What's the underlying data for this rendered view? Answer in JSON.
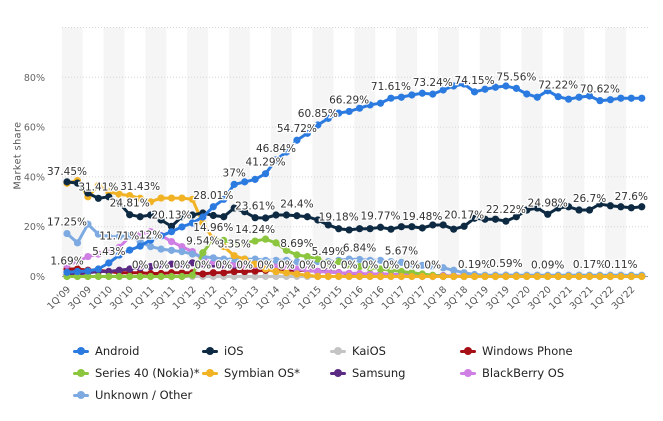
{
  "chart_data": {
    "type": "line",
    "ylabel": "Market share",
    "ylim": [
      0,
      100
    ],
    "yticks": [
      "0%",
      "20%",
      "40%",
      "60%",
      "80%"
    ],
    "ytick_values": [
      0,
      20,
      40,
      60,
      80
    ],
    "grid": true,
    "legend_position": "bottom",
    "x": [
      "1Q'09",
      "2Q'09",
      "3Q'09",
      "4Q'09",
      "1Q'10",
      "2Q'10",
      "3Q'10",
      "4Q'10",
      "1Q'11",
      "2Q'11",
      "3Q'11",
      "4Q'11",
      "1Q'12",
      "2Q'12",
      "3Q'12",
      "4Q'12",
      "1Q'13",
      "2Q'13",
      "3Q'13",
      "4Q'13",
      "1Q'14",
      "2Q'14",
      "3Q'14",
      "4Q'14",
      "1Q'15",
      "2Q'15",
      "3Q'15",
      "4Q'15",
      "1Q'16",
      "2Q'16",
      "3Q'16",
      "4Q'16",
      "1Q'17",
      "2Q'17",
      "3Q'17",
      "4Q'17",
      "1Q'18",
      "2Q'18",
      "3Q'18",
      "4Q'18",
      "1Q'19",
      "2Q'19",
      "3Q'19",
      "4Q'19",
      "1Q'20",
      "2Q'20",
      "3Q'20",
      "4Q'20",
      "1Q'21",
      "2Q'21",
      "3Q'21",
      "4Q'21",
      "1Q'22",
      "2Q'22",
      "3Q'22",
      "4Q'22"
    ],
    "xtick_labels": [
      "1Q'09",
      "3Q'09",
      "1Q'10",
      "3Q'10",
      "1Q'11",
      "3Q'11",
      "1Q'12",
      "3Q'12",
      "1Q'13",
      "3Q'13",
      "1Q'14",
      "3Q'14",
      "1Q'15",
      "3Q'15",
      "1Q'16",
      "3Q'16",
      "1Q'17",
      "3Q'17",
      "1Q'18",
      "3Q'18",
      "1Q'19",
      "3Q'19",
      "1Q'20",
      "3Q'20",
      "1Q'21",
      "3Q'21",
      "1Q'22",
      "3Q'22"
    ],
    "series": [
      {
        "name": "KaiOS",
        "color": "#c4c4c4",
        "values": [
          0,
          0,
          0,
          0,
          0,
          0,
          0,
          0,
          0,
          0,
          0,
          0,
          0,
          0,
          0,
          0,
          0,
          0,
          0,
          0,
          0,
          0,
          0,
          0,
          0,
          0,
          0,
          0,
          0,
          0,
          0,
          0,
          0,
          0,
          0,
          0,
          0,
          0,
          0,
          0.19,
          0.3,
          0.4,
          0.59,
          0.5,
          0.3,
          0.2,
          0.09,
          0.1,
          0.15,
          0.15,
          0.17,
          0.15,
          0.12,
          0.11,
          0.1,
          0.1
        ]
      },
      {
        "name": "Windows Phone",
        "color": "#a50f15",
        "values": [
          3,
          3,
          2.5,
          2.5,
          2,
          1.5,
          1.5,
          1.5,
          1.2,
          1.2,
          1.5,
          1.5,
          1.5,
          1,
          1.5,
          1.5,
          2,
          2,
          2.2,
          2.5,
          2.5,
          2.5,
          2.5,
          2.5,
          2,
          2,
          1.5,
          1.2,
          1,
          0.8,
          0.6,
          0.5,
          0.4,
          0.3,
          0.2,
          0.2,
          0.1,
          0.1,
          0.1,
          0.1,
          0.1,
          0.1,
          0.1,
          0.1,
          0.1,
          0.1,
          0.1,
          0.1,
          0.1,
          0.1,
          0.1,
          0.1,
          0.1,
          0.1,
          0.1,
          0.1
        ]
      },
      {
        "name": "Samsung",
        "color": "#5b2a83",
        "values": [
          0.5,
          1,
          1.5,
          2,
          2,
          2.5,
          3,
          3.5,
          4,
          4.5,
          5,
          5,
          5.5,
          5,
          5,
          4.5,
          4.5,
          4.5,
          4.5,
          4.5,
          4,
          3.5,
          3,
          2.5,
          2,
          2,
          1.5,
          1.2,
          1,
          1,
          1,
          0.8,
          0.6,
          0.5,
          0.4,
          0.3,
          0.3,
          0.2,
          0.2,
          0.2,
          0.2,
          0.2,
          0.2,
          0.2,
          0.2,
          0.2,
          0.2,
          0.2,
          0.2,
          0.2,
          0.2,
          0.2,
          0.2,
          0.2,
          0.2,
          0.2
        ]
      },
      {
        "name": "BlackBerry OS",
        "color": "#cf7ee3",
        "values": [
          4.5,
          6,
          8,
          9,
          10,
          11.71,
          16,
          17,
          18,
          16.5,
          14,
          12,
          10,
          7,
          6,
          5.5,
          5,
          4.5,
          4.5,
          4.5,
          4,
          3.5,
          3,
          2.5,
          2,
          1.8,
          1.5,
          1.3,
          1.2,
          1,
          1,
          0.8,
          0.6,
          0.5,
          0.4,
          0.3,
          0.2,
          0.2,
          0.1,
          0.1,
          0.1,
          0.1,
          0.1,
          0.1,
          0.1,
          0.1,
          0.1,
          0.1,
          0.1,
          0.1,
          0.1,
          0.1,
          0.1,
          0.1,
          0.1,
          0.1
        ]
      },
      {
        "name": "Unknown / Other",
        "color": "#7eaae2",
        "values": [
          17.25,
          13.5,
          21,
          17,
          16,
          16,
          16.5,
          14,
          12,
          11,
          10.5,
          10,
          9,
          8,
          7.5,
          7,
          7,
          7,
          7,
          6.5,
          6.5,
          6.5,
          6,
          6,
          6,
          6,
          6.5,
          7,
          6.84,
          6.5,
          6.5,
          6,
          5.67,
          5,
          4.5,
          4,
          3.5,
          2.5,
          1.5,
          0.8,
          0.5,
          0.5,
          0.5,
          0.5,
          0.5,
          0.5,
          0.5,
          0.5,
          0.5,
          0.5,
          0.5,
          0.5,
          0.5,
          0.5,
          0.5,
          0.5
        ]
      },
      {
        "name": "Series 40 (Nokia)*",
        "color": "#8cc63f",
        "values": [
          0,
          0,
          0,
          0,
          0,
          0,
          0,
          0,
          0,
          0,
          0,
          0,
          0.5,
          9.54,
          15,
          14.5,
          13.5,
          13.5,
          14.24,
          15,
          13.5,
          10.5,
          8.69,
          8,
          7,
          5.49,
          6,
          4.5,
          4,
          3.5,
          3,
          2.5,
          2,
          1.5,
          1,
          0.5,
          0,
          0,
          0,
          0,
          0,
          0,
          0,
          0,
          0,
          0,
          0,
          0,
          0,
          0,
          0,
          0,
          0,
          0,
          0,
          0
        ]
      },
      {
        "name": "Symbian OS*",
        "color": "#f1b324",
        "values": [
          37.45,
          38.5,
          32,
          36.5,
          34,
          33,
          32.5,
          31.43,
          30,
          31.5,
          31.5,
          31.5,
          31,
          21.5,
          14.96,
          12,
          8.35,
          7,
          5,
          3,
          2,
          1.5,
          1,
          0.5,
          0,
          0,
          0,
          0,
          0,
          0,
          0,
          0,
          0,
          0,
          0,
          0,
          0,
          0,
          0,
          0,
          0,
          0,
          0,
          0,
          0,
          0,
          0,
          0,
          0,
          0,
          0,
          0,
          0,
          0,
          0,
          0
        ]
      },
      {
        "name": "iOS",
        "color": "#0d2a42",
        "values": [
          38,
          37.5,
          33.5,
          31.41,
          32,
          29.5,
          24.81,
          24,
          24.7,
          22.7,
          20.13,
          24,
          24.7,
          25.5,
          24.5,
          24,
          27.5,
          26,
          23.61,
          23.5,
          24.7,
          24.7,
          24.4,
          24,
          22.7,
          20.7,
          19.18,
          18.7,
          19.2,
          19.2,
          19.77,
          19,
          20,
          20,
          19.48,
          20.7,
          20.7,
          19,
          20.17,
          23.4,
          23,
          23,
          22.22,
          24,
          26.7,
          27.5,
          24.98,
          27.5,
          28,
          26.7,
          26.7,
          29.1,
          28.4,
          28,
          27.6,
          28
        ]
      },
      {
        "name": "Android",
        "color": "#2b7ae0",
        "values": [
          1.69,
          2,
          2.2,
          3,
          5.43,
          8.6,
          10.6,
          12.2,
          14.6,
          16.3,
          18,
          19.9,
          21.5,
          23.9,
          28.01,
          31,
          37,
          38,
          39,
          41.29,
          46.84,
          50,
          54.72,
          57.5,
          60.85,
          63.5,
          65.6,
          66.29,
          67.6,
          68.9,
          69.6,
          71.61,
          72,
          72.9,
          73.6,
          73.24,
          74.9,
          76.5,
          77.3,
          74.15,
          75.2,
          76,
          76.5,
          75.56,
          73.3,
          72,
          74.6,
          72.22,
          71.2,
          72,
          72.5,
          70.62,
          71,
          71.6,
          71.6,
          71.6
        ]
      }
    ],
    "data_labels": [
      {
        "series": "Android",
        "index": 0,
        "text": "1.69%"
      },
      {
        "series": "Android",
        "index": 4,
        "text": "5.43%"
      },
      {
        "series": "Android",
        "index": 14,
        "text": "28.01%"
      },
      {
        "series": "Android",
        "index": 16,
        "text": "37%"
      },
      {
        "series": "Android",
        "index": 19,
        "text": "41.29%"
      },
      {
        "series": "Android",
        "index": 20,
        "text": "46.84%"
      },
      {
        "series": "Android",
        "index": 22,
        "text": "54.72%"
      },
      {
        "series": "Android",
        "index": 24,
        "text": "60.85%"
      },
      {
        "series": "Android",
        "index": 27,
        "text": "66.29%"
      },
      {
        "series": "Android",
        "index": 31,
        "text": "71.61%"
      },
      {
        "series": "Android",
        "index": 35,
        "text": "73.24%"
      },
      {
        "series": "Android",
        "index": 39,
        "text": "74.15%"
      },
      {
        "series": "Android",
        "index": 43,
        "text": "75.56%"
      },
      {
        "series": "Android",
        "index": 47,
        "text": "72.22%"
      },
      {
        "series": "Android",
        "index": 51,
        "text": "70.62%"
      },
      {
        "series": "iOS",
        "index": 3,
        "text": "31.41%"
      },
      {
        "series": "iOS",
        "index": 6,
        "text": "24.81%"
      },
      {
        "series": "iOS",
        "index": 10,
        "text": "20.13%"
      },
      {
        "series": "iOS",
        "index": 18,
        "text": "23.61%"
      },
      {
        "series": "iOS",
        "index": 22,
        "text": "24.4%"
      },
      {
        "series": "iOS",
        "index": 26,
        "text": "19.18%"
      },
      {
        "series": "iOS",
        "index": 30,
        "text": "19.77%"
      },
      {
        "series": "iOS",
        "index": 34,
        "text": "19.48%"
      },
      {
        "series": "iOS",
        "index": 38,
        "text": "20.17%"
      },
      {
        "series": "iOS",
        "index": 42,
        "text": "22.22%"
      },
      {
        "series": "iOS",
        "index": 46,
        "text": "24.98%"
      },
      {
        "series": "iOS",
        "index": 50,
        "text": "26.7%"
      },
      {
        "series": "iOS",
        "index": 54,
        "text": "27.6%"
      },
      {
        "series": "Symbian OS*",
        "index": 0,
        "text": "37.45%"
      },
      {
        "series": "Symbian OS*",
        "index": 7,
        "text": "31.43%"
      },
      {
        "series": "Symbian OS*",
        "index": 14,
        "text": "14.96%"
      },
      {
        "series": "Symbian OS*",
        "index": 16,
        "text": "8.35%"
      },
      {
        "series": "Series 40 (Nokia)*",
        "index": 13,
        "text": "9.54%"
      },
      {
        "series": "Series 40 (Nokia)*",
        "index": 18,
        "text": "14.24%"
      },
      {
        "series": "Series 40 (Nokia)*",
        "index": 22,
        "text": "8.69%"
      },
      {
        "series": "Series 40 (Nokia)*",
        "index": 25,
        "text": "5.49%"
      },
      {
        "series": "Unknown / Other",
        "index": 0,
        "text": "17.25%"
      },
      {
        "series": "Unknown / Other",
        "index": 8,
        "text": "12%"
      },
      {
        "series": "Unknown / Other",
        "index": 28,
        "text": "6.84%"
      },
      {
        "series": "Unknown / Other",
        "index": 32,
        "text": "5.67%"
      },
      {
        "series": "BlackBerry OS",
        "index": 5,
        "text": "11.71%"
      },
      {
        "series": "KaiOS",
        "index": 7,
        "text": "0%"
      },
      {
        "series": "KaiOS",
        "index": 9,
        "text": "0%"
      },
      {
        "series": "KaiOS",
        "index": 11,
        "text": "0%"
      },
      {
        "series": "KaiOS",
        "index": 13,
        "text": "0%"
      },
      {
        "series": "KaiOS",
        "index": 15,
        "text": "0%"
      },
      {
        "series": "KaiOS",
        "index": 17,
        "text": "0%"
      },
      {
        "series": "KaiOS",
        "index": 19,
        "text": "0%"
      },
      {
        "series": "KaiOS",
        "index": 21,
        "text": "0%"
      },
      {
        "series": "KaiOS",
        "index": 23,
        "text": "0%"
      },
      {
        "series": "KaiOS",
        "index": 25,
        "text": "0%"
      },
      {
        "series": "KaiOS",
        "index": 27,
        "text": "0%"
      },
      {
        "series": "KaiOS",
        "index": 29,
        "text": "0%"
      },
      {
        "series": "KaiOS",
        "index": 31,
        "text": "0%"
      },
      {
        "series": "KaiOS",
        "index": 33,
        "text": "0%"
      },
      {
        "series": "KaiOS",
        "index": 35,
        "text": "0%"
      },
      {
        "series": "KaiOS",
        "index": 39,
        "text": "0.19%"
      },
      {
        "series": "KaiOS",
        "index": 42,
        "text": "0.59%"
      },
      {
        "series": "KaiOS",
        "index": 46,
        "text": "0.09%"
      },
      {
        "series": "KaiOS",
        "index": 50,
        "text": "0.17%"
      },
      {
        "series": "KaiOS",
        "index": 53,
        "text": "0.11%"
      }
    ]
  },
  "legend": [
    {
      "label": "Android",
      "color": "#2b7ae0"
    },
    {
      "label": "iOS",
      "color": "#0d2a42"
    },
    {
      "label": "KaiOS",
      "color": "#c4c4c4"
    },
    {
      "label": "Windows Phone",
      "color": "#a50f15"
    },
    {
      "label": "Series 40 (Nokia)*",
      "color": "#8cc63f"
    },
    {
      "label": "Symbian OS*",
      "color": "#f1b324"
    },
    {
      "label": "Samsung",
      "color": "#5b2a83"
    },
    {
      "label": "BlackBerry OS",
      "color": "#cf7ee3"
    },
    {
      "label": "Unknown / Other",
      "color": "#7eaae2"
    }
  ]
}
